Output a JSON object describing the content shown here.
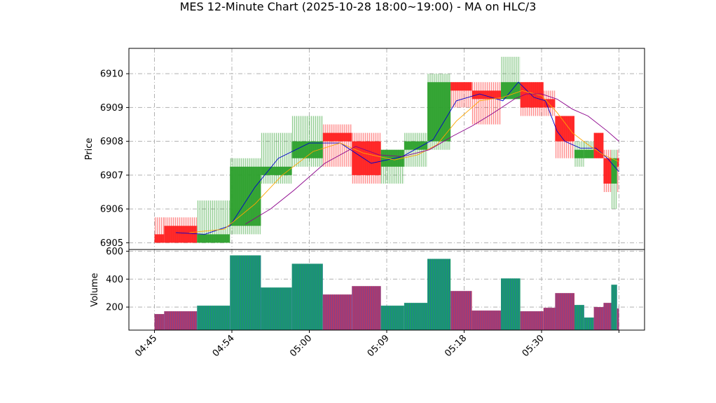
{
  "chart_data": {
    "type": "candlestick",
    "title": "MES 12-Minute Chart (2025-10-28 18:00~19:00) - MA on HLC/3",
    "price_panel": {
      "ylabel": "Price",
      "ylim": [
        6904.8,
        6910.75
      ],
      "yticks": [
        6905,
        6906,
        6907,
        6908,
        6909,
        6910
      ],
      "bars": [
        {
          "start": 0,
          "end": 1.25,
          "open": 6905.25,
          "high": 6905.75,
          "low": 6905.0,
          "close": 6905.0,
          "dir": "down"
        },
        {
          "start": 1.25,
          "end": 5.5,
          "open": 6905.5,
          "high": 6905.75,
          "low": 6905.0,
          "close": 6905.0,
          "dir": "down"
        },
        {
          "start": 5.5,
          "end": 9.75,
          "open": 6905.0,
          "high": 6906.25,
          "low": 6905.0,
          "close": 6905.25,
          "dir": "up"
        },
        {
          "start": 9.75,
          "end": 13.75,
          "open": 6905.5,
          "high": 6907.5,
          "low": 6905.25,
          "close": 6907.25,
          "dir": "up"
        },
        {
          "start": 13.75,
          "end": 17.75,
          "open": 6907.0,
          "high": 6908.25,
          "low": 6906.75,
          "close": 6907.25,
          "dir": "up"
        },
        {
          "start": 17.75,
          "end": 21.75,
          "open": 6907.5,
          "high": 6908.75,
          "low": 6907.25,
          "close": 6908.0,
          "dir": "up"
        },
        {
          "start": 21.75,
          "end": 25.5,
          "open": 6908.25,
          "high": 6908.5,
          "low": 6907.25,
          "close": 6908.0,
          "dir": "down"
        },
        {
          "start": 25.5,
          "end": 29.25,
          "open": 6908.0,
          "high": 6908.25,
          "low": 6906.75,
          "close": 6907.0,
          "dir": "down"
        },
        {
          "start": 29.25,
          "end": 32.25,
          "open": 6907.25,
          "high": 6907.75,
          "low": 6906.75,
          "close": 6907.75,
          "dir": "up"
        },
        {
          "start": 32.25,
          "end": 35.25,
          "open": 6907.75,
          "high": 6908.25,
          "low": 6907.25,
          "close": 6908.0,
          "dir": "up"
        },
        {
          "start": 35.25,
          "end": 38.25,
          "open": 6908.0,
          "high": 6910.0,
          "low": 6907.75,
          "close": 6909.75,
          "dir": "up"
        },
        {
          "start": 38.25,
          "end": 41.0,
          "open": 6909.75,
          "high": 6909.75,
          "low": 6909.0,
          "close": 6909.5,
          "dir": "down"
        },
        {
          "start": 41.0,
          "end": 44.75,
          "open": 6909.5,
          "high": 6909.75,
          "low": 6908.5,
          "close": 6909.25,
          "dir": "down"
        },
        {
          "start": 44.75,
          "end": 47.25,
          "open": 6909.25,
          "high": 6910.5,
          "low": 6909.25,
          "close": 6909.75,
          "dir": "up"
        },
        {
          "start": 47.25,
          "end": 50.25,
          "open": 6909.75,
          "high": 6909.75,
          "low": 6908.75,
          "close": 6909.0,
          "dir": "down"
        },
        {
          "start": 50.25,
          "end": 51.75,
          "open": 6909.25,
          "high": 6909.5,
          "low": 6908.75,
          "close": 6909.0,
          "dir": "down"
        },
        {
          "start": 51.75,
          "end": 54.25,
          "open": 6908.75,
          "high": 6908.75,
          "low": 6907.5,
          "close": 6908.0,
          "dir": "down"
        },
        {
          "start": 54.25,
          "end": 55.5,
          "open": 6907.75,
          "high": 6908.0,
          "low": 6907.25,
          "close": 6907.5,
          "dir": "up"
        },
        {
          "start": 55.5,
          "end": 56.75,
          "open": 6907.75,
          "high": 6908.0,
          "low": 6907.5,
          "close": 6907.5,
          "dir": "up"
        },
        {
          "start": 56.75,
          "end": 58.0,
          "open": 6908.25,
          "high": 6908.25,
          "low": 6907.5,
          "close": 6907.5,
          "dir": "down"
        },
        {
          "start": 58.0,
          "end": 59.0,
          "open": 6907.5,
          "high": 6907.75,
          "low": 6906.5,
          "close": 6906.75,
          "dir": "down"
        },
        {
          "start": 59.0,
          "end": 59.75,
          "open": 6906.75,
          "high": 6907.75,
          "low": 6906.0,
          "close": 6907.5,
          "dir": "up"
        },
        {
          "start": 59.75,
          "end": 60.0,
          "open": 6907.5,
          "high": 6907.75,
          "low": 6906.5,
          "close": 6907.25,
          "dir": "down"
        }
      ],
      "ma_series": [
        {
          "color": "#0000cc",
          "points": [
            [
              2.75,
              6905.3
            ],
            [
              6.5,
              6905.25
            ],
            [
              9.75,
              6905.5
            ],
            [
              13.0,
              6906.65
            ],
            [
              16.0,
              6907.5
            ],
            [
              20.0,
              6907.95
            ],
            [
              24.0,
              6907.95
            ],
            [
              28.0,
              6907.35
            ],
            [
              32.0,
              6907.55
            ],
            [
              36.0,
              6908.05
            ],
            [
              39.0,
              6909.2
            ],
            [
              42.0,
              6909.4
            ],
            [
              45.0,
              6909.2
            ],
            [
              47.0,
              6909.75
            ],
            [
              49.0,
              6909.3
            ],
            [
              50.5,
              6909.2
            ],
            [
              52.0,
              6908.3
            ],
            [
              53.0,
              6908.0
            ],
            [
              55.0,
              6907.8
            ],
            [
              57.0,
              6907.8
            ],
            [
              58.5,
              6907.5
            ],
            [
              60.0,
              6907.1
            ]
          ]
        },
        {
          "color": "#ffa500",
          "points": [
            [
              4.5,
              6905.3
            ],
            [
              9.0,
              6905.4
            ],
            [
              13.0,
              6906.15
            ],
            [
              16.5,
              6907.0
            ],
            [
              20.5,
              6907.7
            ],
            [
              24.0,
              6907.95
            ],
            [
              27.0,
              6907.65
            ],
            [
              31.0,
              6907.45
            ],
            [
              34.0,
              6907.6
            ],
            [
              36.5,
              6907.9
            ],
            [
              39.0,
              6908.6
            ],
            [
              42.0,
              6909.2
            ],
            [
              45.0,
              6909.3
            ],
            [
              47.5,
              6909.5
            ],
            [
              50.0,
              6909.35
            ],
            [
              52.0,
              6908.85
            ],
            [
              54.0,
              6908.25
            ],
            [
              56.0,
              6907.9
            ],
            [
              58.0,
              6907.6
            ],
            [
              60.0,
              6907.4
            ]
          ]
        },
        {
          "color": "#8b008b",
          "points": [
            [
              11.75,
              6905.55
            ],
            [
              15.0,
              6906.0
            ],
            [
              18.0,
              6906.55
            ],
            [
              22.0,
              6907.35
            ],
            [
              26.0,
              6907.85
            ],
            [
              29.0,
              6907.6
            ],
            [
              32.0,
              6907.55
            ],
            [
              35.5,
              6907.75
            ],
            [
              38.5,
              6908.15
            ],
            [
              41.0,
              6908.45
            ],
            [
              43.5,
              6908.8
            ],
            [
              46.5,
              6909.25
            ],
            [
              48.0,
              6909.4
            ],
            [
              50.0,
              6909.4
            ],
            [
              52.0,
              6909.25
            ],
            [
              54.0,
              6908.95
            ],
            [
              56.0,
              6908.75
            ],
            [
              58.5,
              6908.3
            ],
            [
              60.0,
              6908.0
            ]
          ]
        }
      ]
    },
    "volume_panel": {
      "ylabel": "Volume",
      "ylim": [
        35,
        612
      ],
      "yticks": [
        200,
        400,
        600
      ],
      "bars": [
        {
          "start": 0,
          "end": 1.25,
          "value": 150,
          "dir": "down"
        },
        {
          "start": 1.25,
          "end": 5.5,
          "value": 170,
          "dir": "down"
        },
        {
          "start": 5.5,
          "end": 9.75,
          "value": 210,
          "dir": "up"
        },
        {
          "start": 9.75,
          "end": 13.75,
          "value": 570,
          "dir": "up"
        },
        {
          "start": 13.75,
          "end": 17.75,
          "value": 340,
          "dir": "up"
        },
        {
          "start": 17.75,
          "end": 21.75,
          "value": 510,
          "dir": "up"
        },
        {
          "start": 21.75,
          "end": 25.5,
          "value": 290,
          "dir": "down"
        },
        {
          "start": 25.5,
          "end": 29.25,
          "value": 350,
          "dir": "down"
        },
        {
          "start": 29.25,
          "end": 32.25,
          "value": 210,
          "dir": "up"
        },
        {
          "start": 32.25,
          "end": 35.25,
          "value": 230,
          "dir": "up"
        },
        {
          "start": 35.25,
          "end": 38.25,
          "value": 545,
          "dir": "up"
        },
        {
          "start": 38.25,
          "end": 41.0,
          "value": 315,
          "dir": "down"
        },
        {
          "start": 41.0,
          "end": 44.75,
          "value": 175,
          "dir": "down"
        },
        {
          "start": 44.75,
          "end": 47.25,
          "value": 405,
          "dir": "up"
        },
        {
          "start": 47.25,
          "end": 50.25,
          "value": 170,
          "dir": "down"
        },
        {
          "start": 50.25,
          "end": 51.75,
          "value": 195,
          "dir": "down"
        },
        {
          "start": 51.75,
          "end": 54.25,
          "value": 300,
          "dir": "down"
        },
        {
          "start": 54.25,
          "end": 55.5,
          "value": 215,
          "dir": "up"
        },
        {
          "start": 55.5,
          "end": 56.75,
          "value": 125,
          "dir": "up"
        },
        {
          "start": 56.75,
          "end": 58.0,
          "value": 200,
          "dir": "down"
        },
        {
          "start": 58.0,
          "end": 59.0,
          "value": 230,
          "dir": "down"
        },
        {
          "start": 59.0,
          "end": 59.75,
          "value": 360,
          "dir": "up"
        },
        {
          "start": 59.75,
          "end": 60.0,
          "value": 190,
          "dir": "down"
        }
      ]
    },
    "x_axis": {
      "xlim": [
        -3.3,
        63.3
      ],
      "ticks": [
        {
          "pos": 0,
          "label": "04:45"
        },
        {
          "pos": 10,
          "label": "04:54"
        },
        {
          "pos": 20,
          "label": "05:00"
        },
        {
          "pos": 30,
          "label": "05:09"
        },
        {
          "pos": 40,
          "label": "05:18"
        },
        {
          "pos": 50,
          "label": "05:30"
        },
        {
          "pos": 60,
          "label": ""
        }
      ]
    },
    "colors": {
      "up": "#2ca02c",
      "down": "#ff2020",
      "volume_up": "#1a9a6a",
      "volume_down": "#b03a6a"
    }
  }
}
